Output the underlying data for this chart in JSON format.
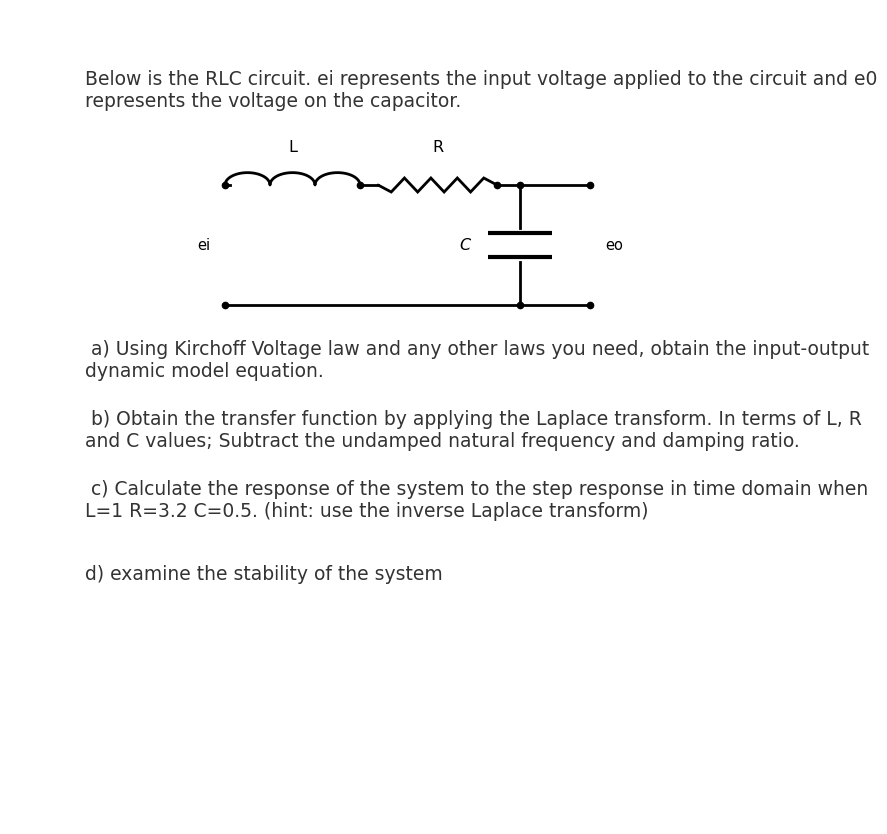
{
  "bg_color": "#ffffff",
  "text_color": "#333333",
  "intro_text_line1": "Below is the RLC circuit. ei represents the input voltage applied to the circuit and e0",
  "intro_text_line2": "represents the voltage on the capacitor.",
  "part_a_line1": " a) Using Kirchoff Voltage law and any other laws you need, obtain the input-output",
  "part_a_line2": "dynamic model equation.",
  "part_b_line1": " b) Obtain the transfer function by applying the Laplace transform. In terms of L, R",
  "part_b_line2": "and C values; Subtract the undamped natural frequency and damping ratio.",
  "part_c_line1": " c) Calculate the response of the system to the step response in time domain when",
  "part_c_line2": "L=1 R=3.2 C=0.5. (hint: use the inverse Laplace transform)",
  "part_d": "d) examine the stability of the system",
  "label_L": "L",
  "label_R": "R",
  "label_C": "C",
  "label_ei": "ei",
  "label_eo": "eo",
  "font_size_text": 13.5,
  "font_size_circuit": 11.5
}
